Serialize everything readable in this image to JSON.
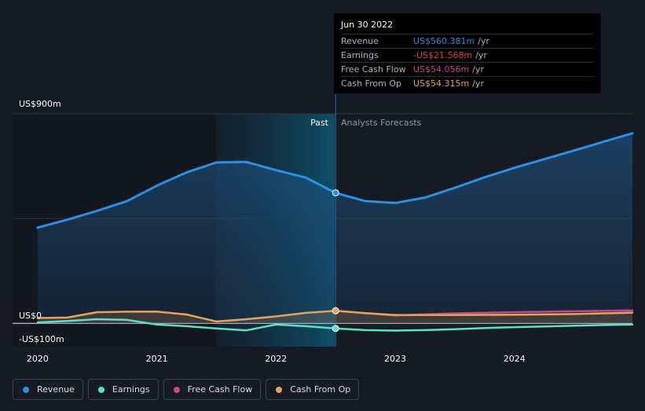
{
  "chart_data": {
    "type": "line",
    "y_axis": {
      "top_label": "US$900m",
      "zero_label": "US$0",
      "bottom_label": "-US$100m",
      "ylim": [
        -100,
        900
      ]
    },
    "x_ticks": [
      {
        "label": "2020",
        "x": 2020.0
      },
      {
        "label": "2021",
        "x": 2021.0
      },
      {
        "label": "2022",
        "x": 2022.0
      },
      {
        "label": "2023",
        "x": 2023.0
      },
      {
        "label": "2024",
        "x": 2024.0
      }
    ],
    "xlim": [
      2019.79,
      2024.99
    ],
    "divider": {
      "x": 2022.5,
      "past_label": "Past",
      "forecast_label": "Analysts Forecasts"
    },
    "series": [
      {
        "name": "Revenue",
        "color": "#2e8fe0",
        "fill": true,
        "points": [
          [
            2020.0,
            411
          ],
          [
            2020.25,
            445
          ],
          [
            2020.5,
            483
          ],
          [
            2020.75,
            525
          ],
          [
            2021.0,
            591
          ],
          [
            2021.25,
            648
          ],
          [
            2021.5,
            691
          ],
          [
            2021.75,
            693
          ],
          [
            2022.0,
            658
          ],
          [
            2022.25,
            626
          ],
          [
            2022.5,
            560
          ],
          [
            2022.75,
            525
          ],
          [
            2023.0,
            517
          ],
          [
            2023.25,
            540
          ],
          [
            2023.5,
            582
          ],
          [
            2023.75,
            627
          ],
          [
            2024.0,
            668
          ],
          [
            2024.25,
            705
          ],
          [
            2024.5,
            742
          ],
          [
            2024.75,
            780
          ],
          [
            2024.99,
            816
          ]
        ]
      },
      {
        "name": "Earnings",
        "color": "#5ee0c8",
        "fill": false,
        "points": [
          [
            2020.0,
            4
          ],
          [
            2020.25,
            10
          ],
          [
            2020.5,
            18
          ],
          [
            2020.75,
            15
          ],
          [
            2021.0,
            -5
          ],
          [
            2021.25,
            -12
          ],
          [
            2021.5,
            -22
          ],
          [
            2021.75,
            -30
          ],
          [
            2022.0,
            -5
          ],
          [
            2022.25,
            -12
          ],
          [
            2022.5,
            -21.6
          ],
          [
            2022.75,
            -29
          ],
          [
            2023.0,
            -31
          ],
          [
            2023.25,
            -29
          ],
          [
            2023.5,
            -25
          ],
          [
            2023.75,
            -20
          ],
          [
            2024.0,
            -16
          ],
          [
            2024.25,
            -13
          ],
          [
            2024.5,
            -10
          ],
          [
            2024.75,
            -7
          ],
          [
            2024.99,
            -5
          ]
        ]
      },
      {
        "name": "Free Cash Flow",
        "color": "#c8458c",
        "fill": false,
        "points": [
          [
            2022.5,
            54.1
          ],
          [
            2023.0,
            34
          ],
          [
            2023.5,
            43
          ],
          [
            2024.0,
            48
          ],
          [
            2024.5,
            52
          ],
          [
            2024.99,
            56
          ]
        ]
      },
      {
        "name": "Cash From Op",
        "color": "#e8a15a",
        "fill": true,
        "points": [
          [
            2020.0,
            23
          ],
          [
            2020.25,
            25
          ],
          [
            2020.5,
            48
          ],
          [
            2020.75,
            50
          ],
          [
            2021.0,
            51
          ],
          [
            2021.25,
            38
          ],
          [
            2021.5,
            8
          ],
          [
            2021.75,
            18
          ],
          [
            2022.0,
            30
          ],
          [
            2022.25,
            45
          ],
          [
            2022.5,
            54.3
          ],
          [
            2022.75,
            44
          ],
          [
            2023.0,
            36
          ],
          [
            2023.5,
            36
          ],
          [
            2024.0,
            37
          ],
          [
            2024.5,
            40
          ],
          [
            2024.99,
            46
          ]
        ]
      }
    ],
    "highlight": {
      "x": 2022.5,
      "values": {
        "Revenue": 560.381,
        "Earnings": -21.568,
        "Cash From Op": 54.315
      }
    }
  },
  "tooltip": {
    "date": "Jun 30 2022",
    "rows": [
      {
        "label": "Revenue",
        "value": "US$560.381m",
        "unit": "/yr",
        "color": "#2e8fe0"
      },
      {
        "label": "Earnings",
        "value": "-US$21.568m",
        "unit": "/yr",
        "color": "#e0433f"
      },
      {
        "label": "Free Cash Flow",
        "value": "US$54.056m",
        "unit": "/yr",
        "color": "#c8458c"
      },
      {
        "label": "Cash From Op",
        "value": "US$54.315m",
        "unit": "/yr",
        "color": "#e8a15a"
      }
    ]
  },
  "legend": [
    {
      "label": "Revenue",
      "color": "#2e8fe0"
    },
    {
      "label": "Earnings",
      "color": "#5ee0c8"
    },
    {
      "label": "Free Cash Flow",
      "color": "#c8458c"
    },
    {
      "label": "Cash From Op",
      "color": "#e8a15a"
    }
  ]
}
